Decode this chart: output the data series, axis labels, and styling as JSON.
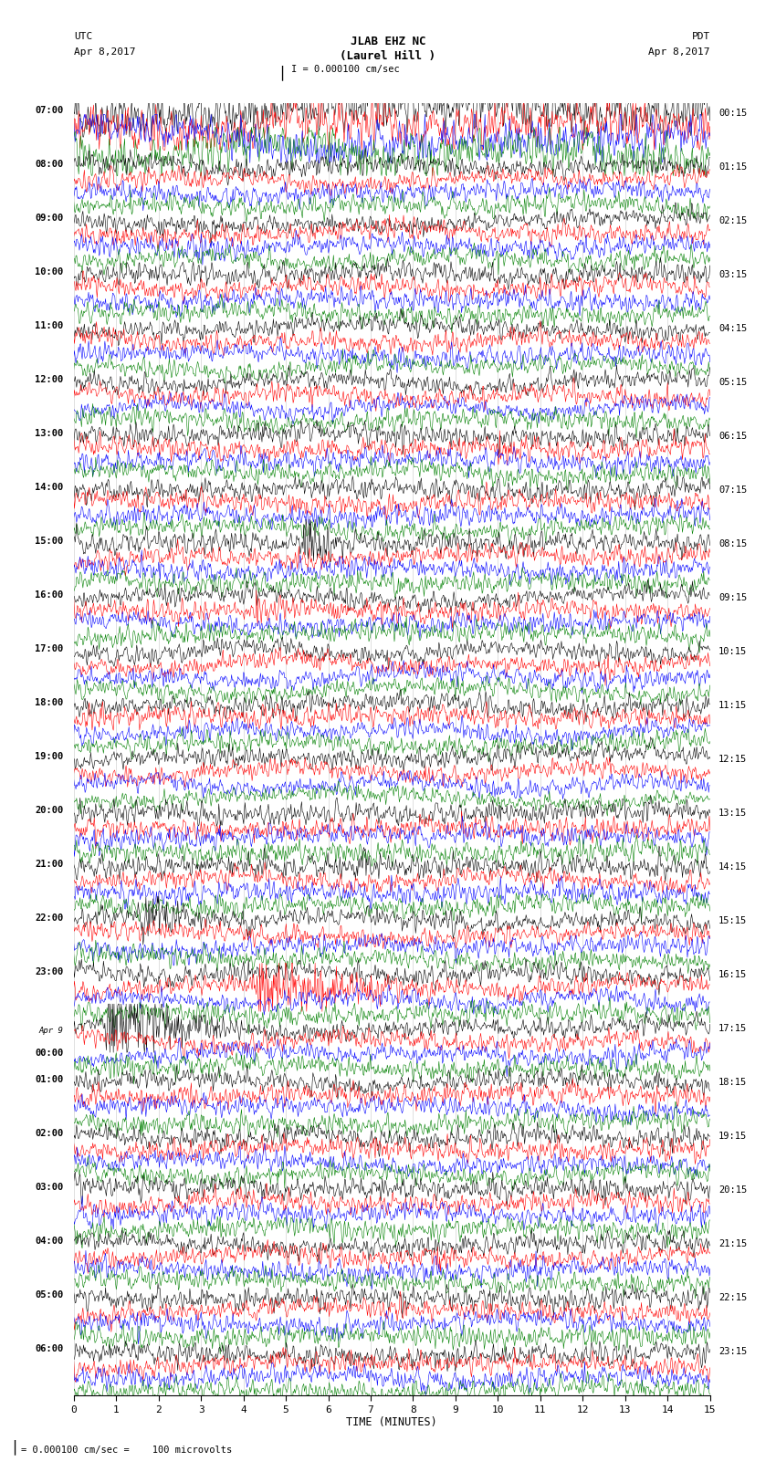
{
  "title_line1": "JLAB EHZ NC",
  "title_line2": "(Laurel Hill )",
  "scale_text": "I = 0.000100 cm/sec",
  "utc_label": "UTC",
  "utc_date": "Apr 8,2017",
  "pdt_label": "PDT",
  "pdt_date": "Apr 8,2017",
  "footer_text": "= 0.000100 cm/sec =    100 microvolts",
  "xlabel": "TIME (MINUTES)",
  "colors": [
    "black",
    "red",
    "blue",
    "green"
  ],
  "minutes_per_row": 15,
  "bg_color": "white",
  "figwidth": 8.5,
  "figheight": 16.13,
  "left_labels": [
    [
      "07:00",
      false
    ],
    [
      "08:00",
      false
    ],
    [
      "09:00",
      false
    ],
    [
      "10:00",
      false
    ],
    [
      "11:00",
      false
    ],
    [
      "12:00",
      false
    ],
    [
      "13:00",
      false
    ],
    [
      "14:00",
      false
    ],
    [
      "15:00",
      false
    ],
    [
      "16:00",
      false
    ],
    [
      "17:00",
      false
    ],
    [
      "18:00",
      false
    ],
    [
      "19:00",
      false
    ],
    [
      "20:00",
      false
    ],
    [
      "21:00",
      false
    ],
    [
      "22:00",
      false
    ],
    [
      "23:00",
      false
    ],
    [
      "Apr 9\n00:00",
      true
    ],
    [
      "01:00",
      false
    ],
    [
      "02:00",
      false
    ],
    [
      "03:00",
      false
    ],
    [
      "04:00",
      false
    ],
    [
      "05:00",
      false
    ],
    [
      "06:00",
      false
    ]
  ],
  "right_labels": [
    "00:15",
    "01:15",
    "02:15",
    "03:15",
    "04:15",
    "05:15",
    "06:15",
    "07:15",
    "08:15",
    "09:15",
    "10:15",
    "11:15",
    "12:15",
    "13:15",
    "14:15",
    "15:15",
    "16:15",
    "17:15",
    "18:15",
    "19:15",
    "20:15",
    "21:15",
    "22:15",
    "23:15"
  ]
}
